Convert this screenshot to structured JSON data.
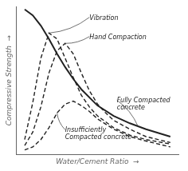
{
  "chart_data": {
    "type": "line",
    "xlabel": "Water/Cement Ratio  →",
    "ylabel": "Compressive Strength  →",
    "xlim": [
      0,
      10
    ],
    "ylim": [
      0,
      10
    ],
    "grid": false,
    "tick_labels": false,
    "series": [
      {
        "color": "#222222",
        "line_style": "solid",
        "x": [
          0.5,
          1.0,
          1.5,
          2.0,
          2.5,
          3.0,
          3.5,
          4.0,
          5.0,
          6.0,
          7.0,
          8.0,
          9.5
        ],
        "values": [
          9.8,
          9.4,
          8.7,
          7.8,
          6.8,
          5.9,
          5.1,
          4.4,
          3.3,
          2.6,
          2.1,
          1.7,
          1.2
        ]
      },
      {
        "color": "#222222",
        "line_style": "dashed",
        "x": [
          0.5,
          1.0,
          1.5,
          2.0,
          2.5,
          3.0,
          3.5,
          4.0,
          4.5,
          5.0,
          6.0,
          7.0,
          8.0,
          9.5
        ],
        "values": [
          1.0,
          3.5,
          6.5,
          8.2,
          7.8,
          6.5,
          5.2,
          4.0,
          3.2,
          2.6,
          1.8,
          1.3,
          1.0,
          0.7
        ]
      },
      {
        "color": "#222222",
        "line_style": "dashed",
        "x": [
          0.5,
          1.0,
          1.5,
          2.0,
          2.5,
          3.0,
          3.5,
          4.0,
          4.5,
          5.0,
          5.5,
          6.0,
          7.0,
          8.0,
          9.5
        ],
        "values": [
          0.6,
          1.5,
          3.2,
          5.5,
          7.0,
          7.5,
          6.8,
          5.5,
          4.3,
          3.4,
          2.8,
          2.3,
          1.7,
          1.2,
          0.8
        ]
      },
      {
        "color": "#222222",
        "line_style": "dashed",
        "x": [
          0.5,
          1.0,
          1.5,
          2.0,
          2.5,
          3.0,
          3.5,
          4.0,
          4.5,
          5.0,
          6.0,
          7.0,
          8.0,
          9.5
        ],
        "values": [
          0.3,
          0.5,
          1.0,
          1.8,
          2.8,
          3.4,
          3.6,
          3.3,
          2.9,
          2.4,
          1.7,
          1.2,
          0.9,
          0.5
        ]
      }
    ],
    "annotations": [
      {
        "text": "Vibration",
        "x": 2.0,
        "y": 8.2,
        "text_x": 4.5,
        "text_y": 9.1
      },
      {
        "text": "Hand Compaction",
        "x": 3.0,
        "y": 7.5,
        "text_x": 4.5,
        "text_y": 7.8
      },
      {
        "text": "Fully Compacted\nconcrete",
        "x": 7.5,
        "y": 1.9,
        "text_x": 6.2,
        "text_y": 3.5
      },
      {
        "text": "Insufficiently\nCompacted concrete",
        "x": 2.5,
        "y": 2.8,
        "text_x": 3.0,
        "text_y": 1.5
      }
    ]
  }
}
